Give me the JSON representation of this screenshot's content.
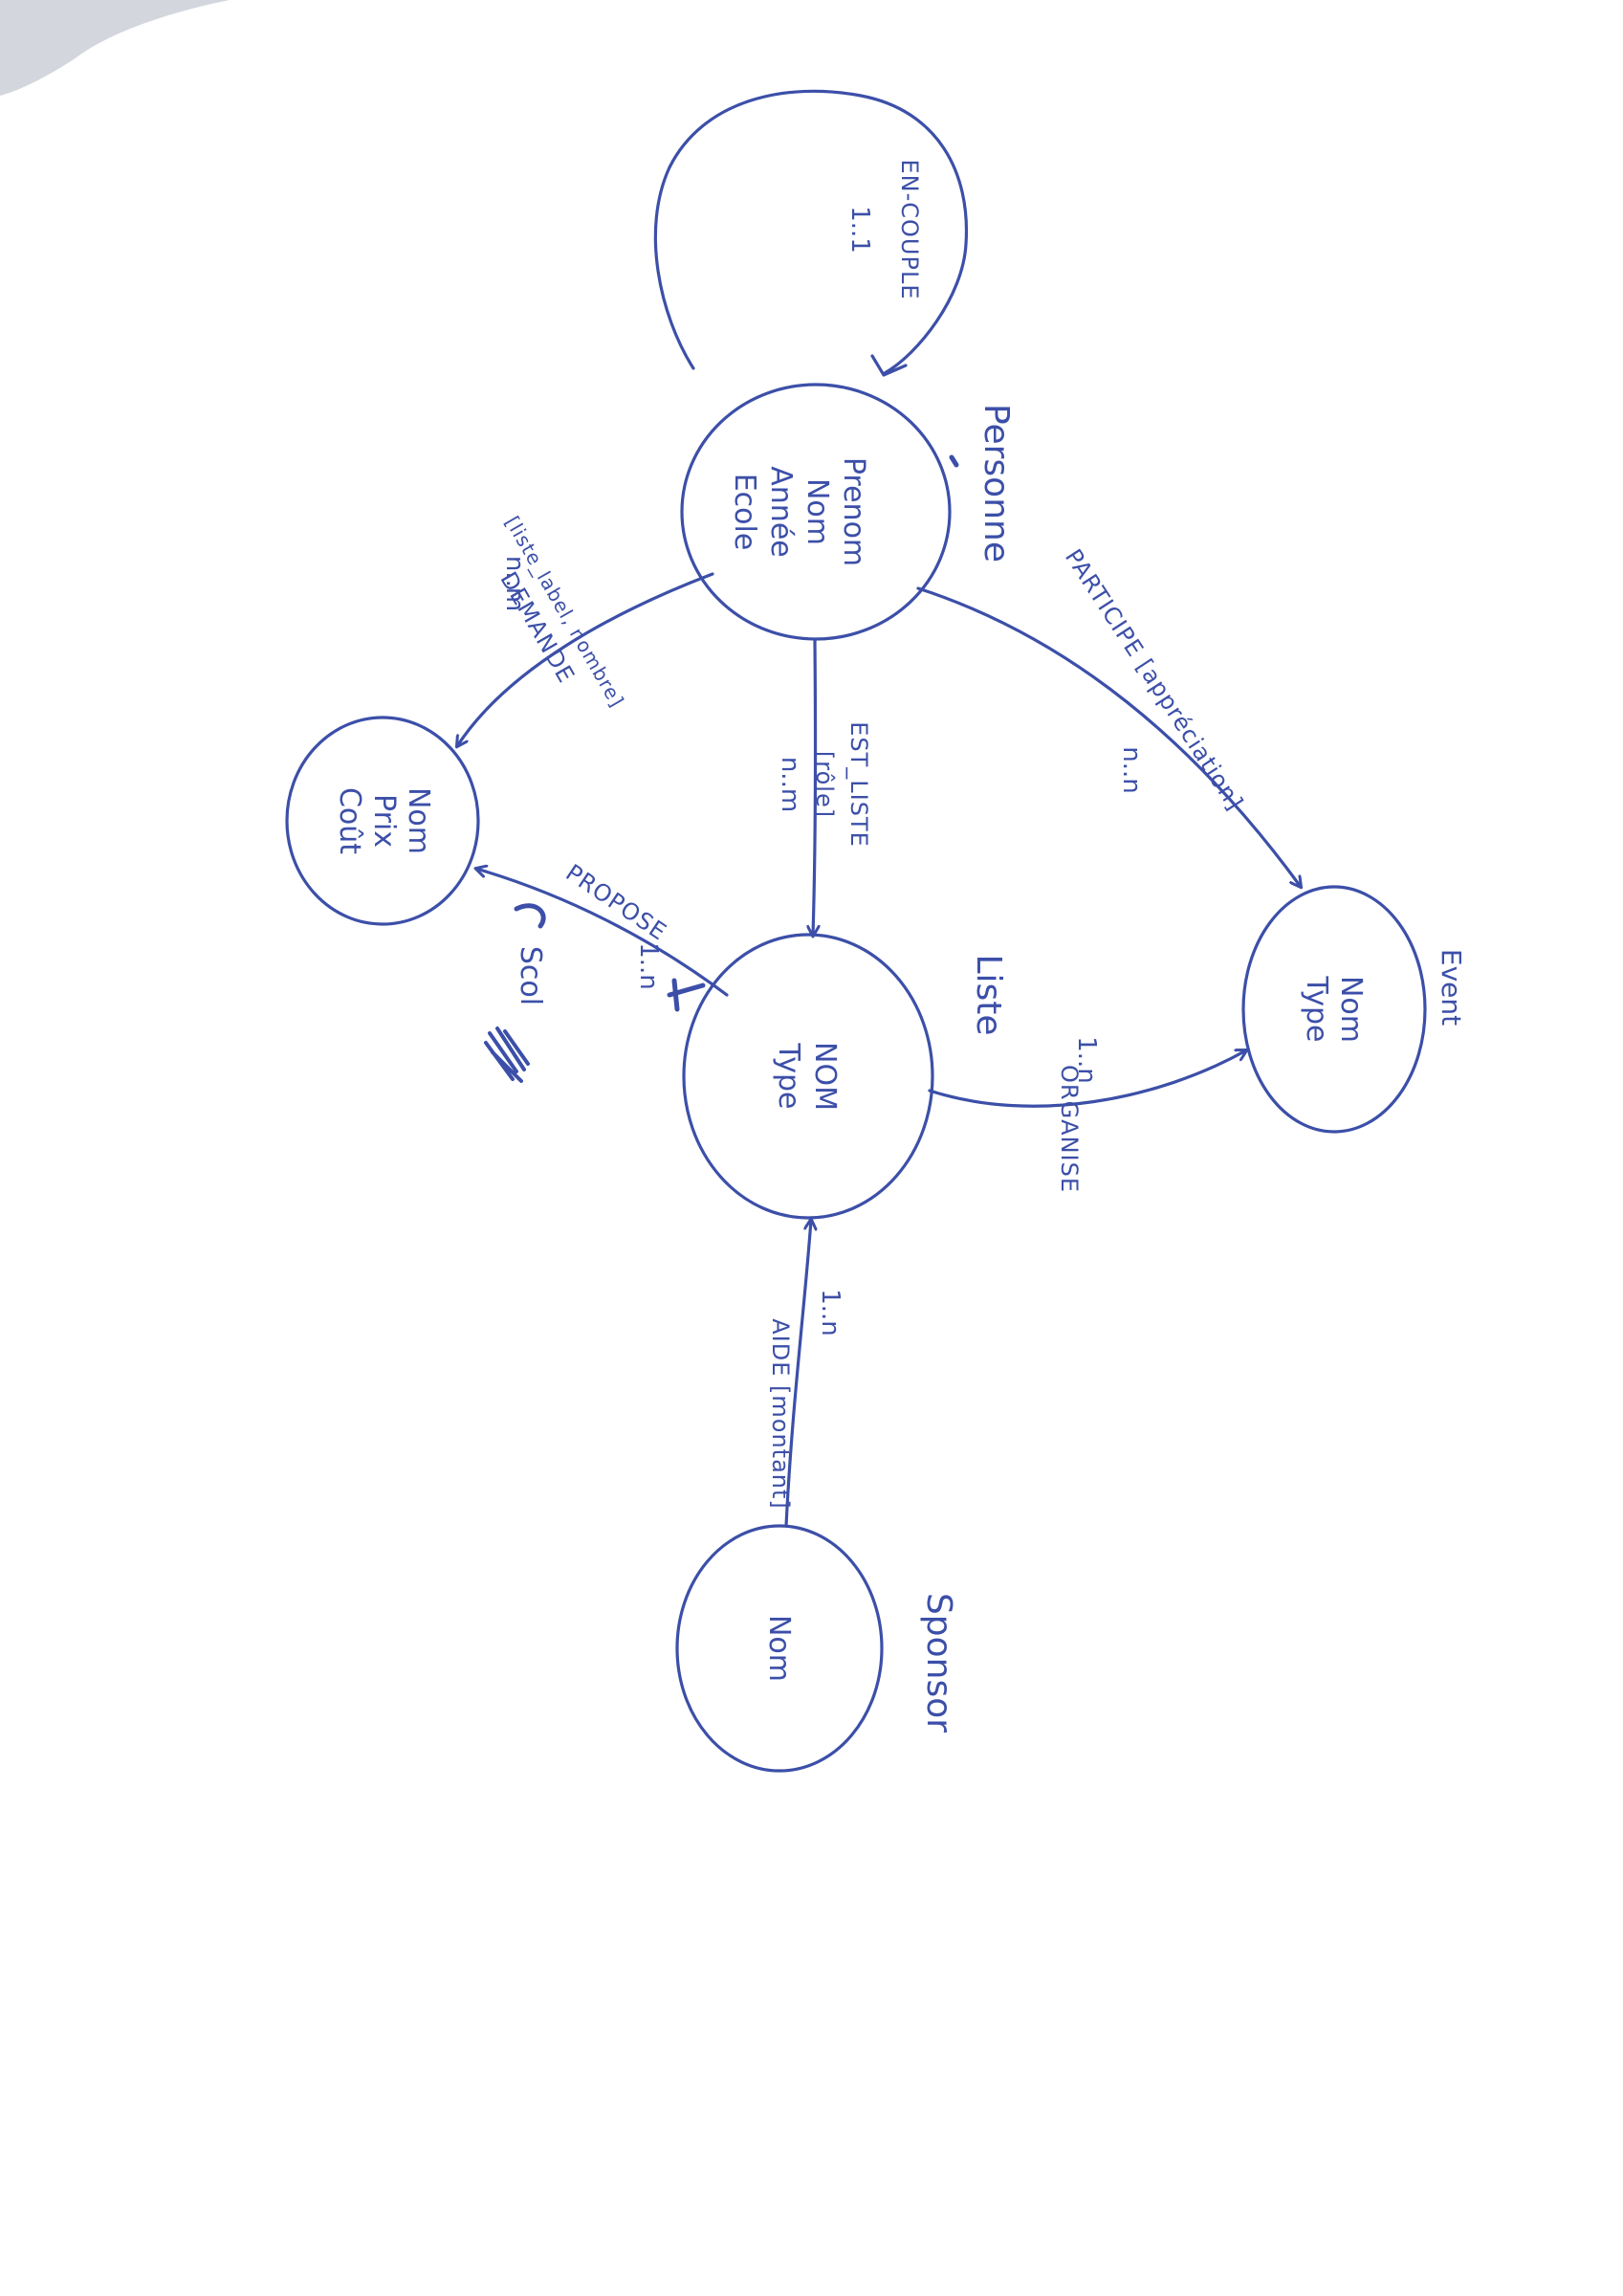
{
  "colors": {
    "ink": "#3c4fa8",
    "paper": "#ffffff",
    "smudge": "#d4d6de"
  },
  "entities": {
    "personne": {
      "name": "Personne",
      "attributes": [
        "Prenom",
        "Nom",
        "Année",
        "Ecole"
      ]
    },
    "liste": {
      "name": "Liste",
      "attributes": [
        "NOM",
        "Type"
      ]
    },
    "event": {
      "name": "Event",
      "attributes": [
        "Nom",
        "Type"
      ]
    },
    "sponsor": {
      "name": "Sponsor",
      "attributes": [
        "Nom"
      ]
    },
    "unnamed": {
      "attributes": [
        "Nom",
        "Prix",
        "Coût"
      ]
    }
  },
  "relationships": {
    "en_couple": {
      "label": "EN-COUPLE",
      "cardinality": "1..1"
    },
    "est_liste": {
      "label": "EST_LISTE",
      "attribute": "[rôle]",
      "cardinality": "n..m"
    },
    "participe": {
      "label": "PARTICIPE [appréciation]",
      "cardinality": "n..n"
    },
    "organise": {
      "label": "ORGANISE",
      "cardinality": "1..n"
    },
    "aide": {
      "label": "AIDE [montant]",
      "cardinality": "1..n"
    },
    "demande": {
      "label": "DEMANDE",
      "attribute": "[liste_label, nombre]",
      "cardinality": "n..m"
    },
    "propose": {
      "label": "PROPOSE",
      "cardinality": "1..n"
    }
  },
  "annotations": {
    "scribble": "Scol"
  }
}
